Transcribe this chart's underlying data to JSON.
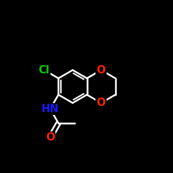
{
  "background": "#000000",
  "bond_color": "#ffffff",
  "bw": 1.8,
  "atom_colors": {
    "Cl": "#00cc00",
    "N": "#1a1aff",
    "O": "#ff2200"
  },
  "figsize": [
    2.5,
    2.5
  ],
  "dpi": 100,
  "font_size": 10.5,
  "bcx": 0.42,
  "bcy": 0.5,
  "L": 0.095
}
